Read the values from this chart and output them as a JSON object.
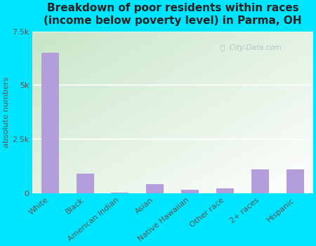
{
  "categories": [
    "White",
    "Black",
    "American Indian",
    "Asian",
    "Native Hawaiian",
    "Other race",
    "2+ races",
    "Hispanic"
  ],
  "values": [
    6500,
    900,
    30,
    400,
    150,
    200,
    1100,
    1100
  ],
  "bar_color": "#b39ddb",
  "background_outer": "#00e5ff",
  "background_plot_top_left": "#c8e6c9",
  "background_plot_bottom_right": "#ffffff",
  "title": "Breakdown of poor residents within races\n(income below poverty level) in Parma, OH",
  "ylabel": "absolute numbers",
  "ylim": [
    0,
    7500
  ],
  "yticks": [
    0,
    2500,
    5000,
    7500
  ],
  "ytick_labels": [
    "0",
    "2.5k",
    "5k",
    "7.5k"
  ],
  "title_fontsize": 11,
  "ylabel_fontsize": 8,
  "tick_fontsize": 8,
  "watermark_text": "ⓘ  City-Data.com",
  "watermark_color": "#aabbcc"
}
